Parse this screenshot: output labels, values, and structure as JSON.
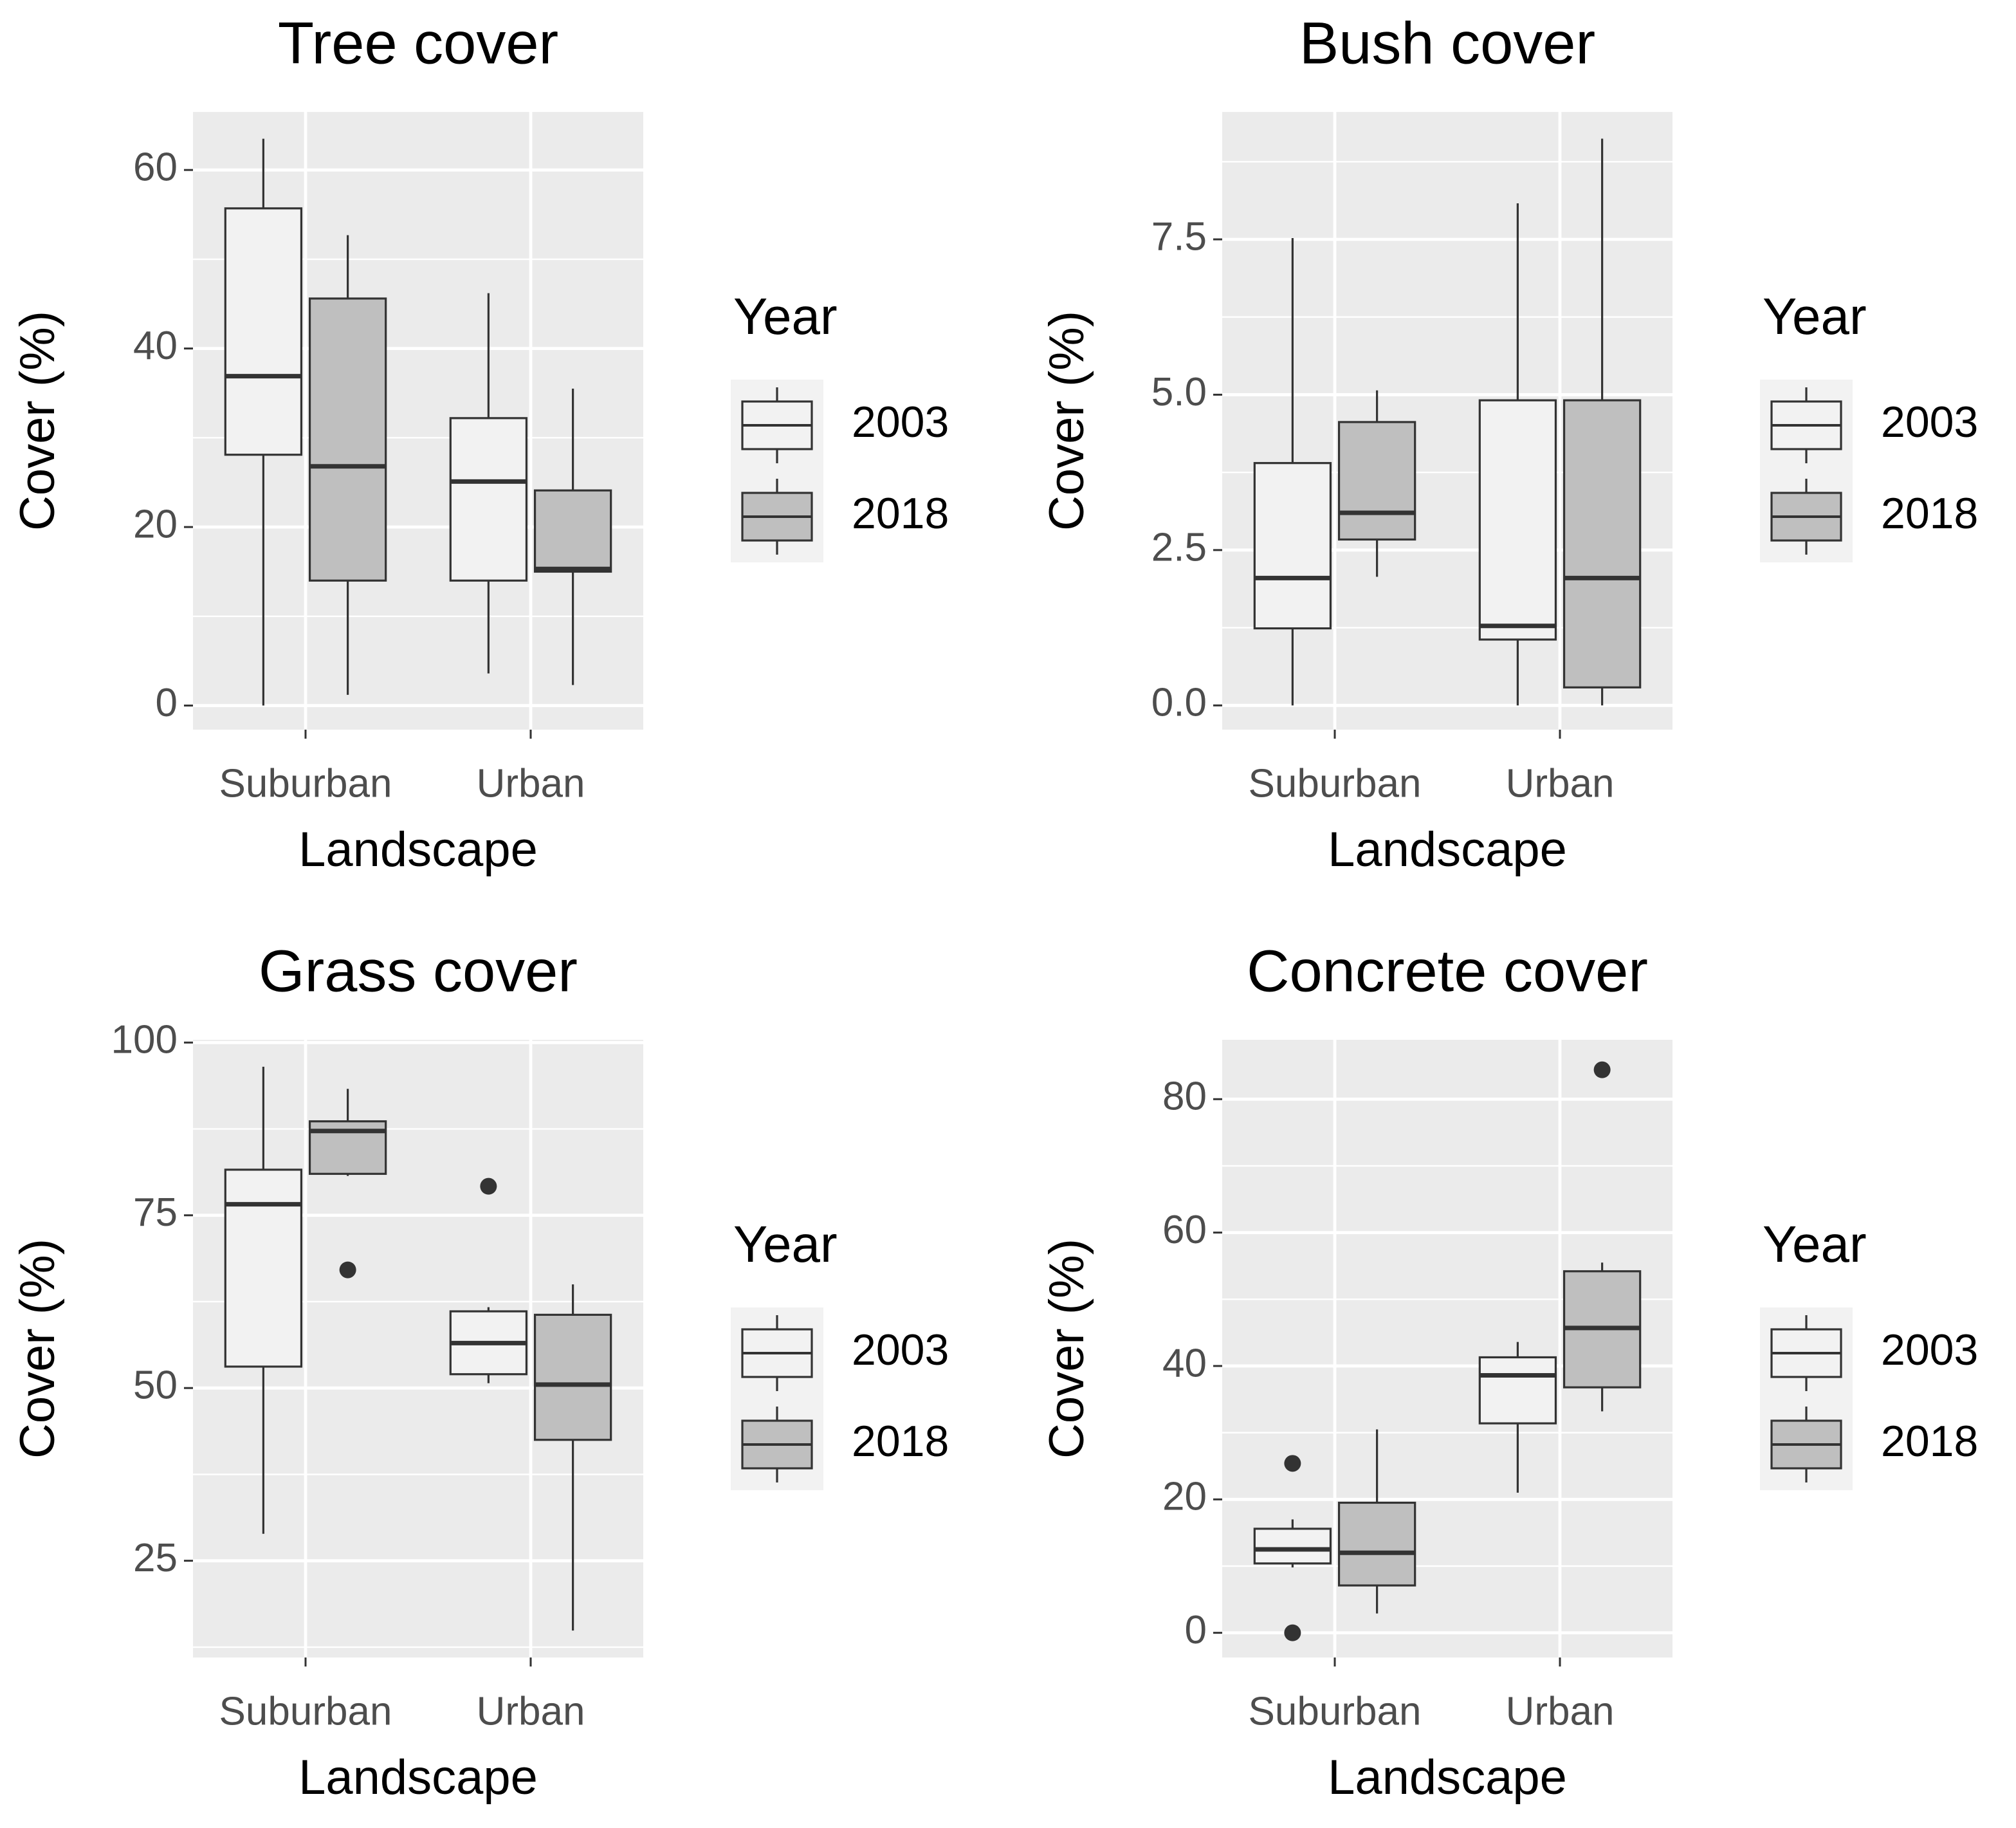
{
  "chart_data": [
    {
      "type": "box",
      "title": "Tree cover",
      "x_label": "Landscape",
      "y_label": "Cover (%)",
      "legend_title": "Year",
      "categories": [
        "Suburban",
        "Urban"
      ],
      "ylim": [
        -2.7,
        66.5
      ],
      "yticks": [
        0,
        20,
        40,
        60
      ],
      "series": [
        {
          "name": "2003",
          "color": "#f2f2f2",
          "values": [
            {
              "whisker_low": 0,
              "q1": 28.1,
              "median": 36.9,
              "q3": 55.7,
              "whisker_high": 63.5,
              "outliers": []
            },
            {
              "whisker_low": 3.6,
              "q1": 14,
              "median": 25.1,
              "q3": 32.2,
              "whisker_high": 46.2,
              "outliers": []
            }
          ]
        },
        {
          "name": "2018",
          "color": "#bfbfbf",
          "values": [
            {
              "whisker_low": 1.2,
              "q1": 14,
              "median": 26.8,
              "q3": 45.6,
              "whisker_high": 52.7,
              "outliers": []
            },
            {
              "whisker_low": 2.3,
              "q1": 15,
              "median": 15.3,
              "q3": 24.1,
              "whisker_high": 35.5,
              "outliers": []
            }
          ]
        }
      ]
    },
    {
      "type": "box",
      "title": "Bush cover",
      "x_label": "Landscape",
      "y_label": "Cover (%)",
      "legend_title": "Year",
      "categories": [
        "Suburban",
        "Urban"
      ],
      "ylim": [
        -0.39,
        9.55
      ],
      "yticks": [
        {
          "value": 0,
          "label": "0.0"
        },
        2.5,
        {
          "value": 5,
          "label": "5.0"
        },
        7.5
      ],
      "series": [
        {
          "name": "2003",
          "color": "#f2f2f2",
          "values": [
            {
              "whisker_low": 0,
              "q1": 1.24,
              "median": 2.05,
              "q3": 3.9,
              "whisker_high": 7.52,
              "outliers": []
            },
            {
              "whisker_low": 0,
              "q1": 1.06,
              "median": 1.28,
              "q3": 4.91,
              "whisker_high": 8.08,
              "outliers": []
            }
          ]
        },
        {
          "name": "2018",
          "color": "#bfbfbf",
          "values": [
            {
              "whisker_low": 2.07,
              "q1": 2.67,
              "median": 3.1,
              "q3": 4.56,
              "whisker_high": 5.07,
              "outliers": []
            },
            {
              "whisker_low": 0,
              "q1": 0.29,
              "median": 2.05,
              "q3": 4.91,
              "whisker_high": 9.12,
              "outliers": []
            }
          ]
        }
      ]
    },
    {
      "type": "box",
      "title": "Grass cover",
      "x_label": "Landscape",
      "y_label": "Cover (%)",
      "legend_title": "Year",
      "categories": [
        "Suburban",
        "Urban"
      ],
      "ylim": [
        11.0,
        100.4
      ],
      "yticks": [
        25,
        50,
        75,
        100
      ],
      "series": [
        {
          "name": "2003",
          "color": "#f2f2f2",
          "values": [
            {
              "whisker_low": 28.9,
              "q1": 53.1,
              "median": 76.6,
              "q3": 81.6,
              "whisker_high": 96.5,
              "outliers": []
            },
            {
              "whisker_low": 50.7,
              "q1": 52,
              "median": 56.5,
              "q3": 61.1,
              "whisker_high": 61.7,
              "outliers": [
                79.2
              ]
            }
          ]
        },
        {
          "name": "2018",
          "color": "#bfbfbf",
          "values": [
            {
              "whisker_low": 80.7,
              "q1": 81.0,
              "median": 87.2,
              "q3": 88.6,
              "whisker_high": 93.3,
              "outliers": [
                67.1
              ]
            },
            {
              "whisker_low": 14.9,
              "q1": 42.5,
              "median": 50.5,
              "q3": 60.6,
              "whisker_high": 65.0,
              "outliers": []
            }
          ]
        }
      ]
    },
    {
      "type": "box",
      "title": "Concrete cover",
      "x_label": "Landscape",
      "y_label": "Cover (%)",
      "legend_title": "Year",
      "categories": [
        "Suburban",
        "Urban"
      ],
      "ylim": [
        -3.7,
        88.9
      ],
      "yticks": [
        0,
        20,
        40,
        60,
        80
      ],
      "series": [
        {
          "name": "2003",
          "color": "#f2f2f2",
          "values": [
            {
              "whisker_low": 9.8,
              "q1": 10.4,
              "median": 12.5,
              "q3": 15.6,
              "whisker_high": 17.0,
              "outliers": [
                25.4,
                0
              ]
            },
            {
              "whisker_low": 21.0,
              "q1": 31.4,
              "median": 38.6,
              "q3": 41.3,
              "whisker_high": 43.6,
              "outliers": []
            }
          ]
        },
        {
          "name": "2018",
          "color": "#bfbfbf",
          "values": [
            {
              "whisker_low": 2.9,
              "q1": 7.1,
              "median": 12.0,
              "q3": 19.5,
              "whisker_high": 30.5,
              "outliers": []
            },
            {
              "whisker_low": 33.2,
              "q1": 36.8,
              "median": 45.7,
              "q3": 54.2,
              "whisker_high": 55.5,
              "outliers": [
                84.4
              ]
            }
          ]
        }
      ]
    }
  ]
}
